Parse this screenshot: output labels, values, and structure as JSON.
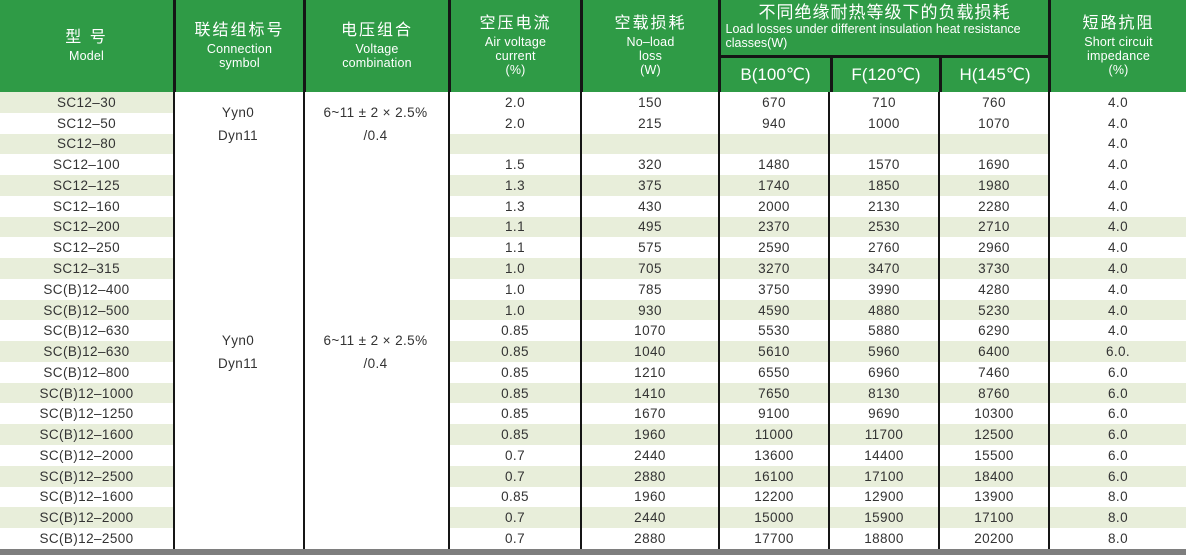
{
  "table": {
    "header": {
      "model": {
        "zh": "型  号",
        "en": "Model"
      },
      "connection": {
        "zh": "联结组标号",
        "en1": "Connection",
        "en2": "symbol"
      },
      "voltage": {
        "zh": "电压组合",
        "en1": "Voltage",
        "en2": "combination"
      },
      "air_current": {
        "zh": "空压电流",
        "en1": "Air voltage",
        "en2": "current",
        "unit": "(%)"
      },
      "no_load": {
        "zh": "空载损耗",
        "en1": "No–load",
        "en2": "loss",
        "unit": "(W)"
      },
      "load_losses": {
        "zh": "不同绝缘耐热等级下的负载损耗",
        "en": "Load losses under different insulation heat resistance classes(W)",
        "col_b": "B(100℃)",
        "col_f": "F(120℃)",
        "col_h": "H(145℃)"
      },
      "impedance": {
        "zh": "短路抗阻",
        "en1": "Short circuit",
        "en2": "impedance",
        "unit": "(%)"
      }
    },
    "groups": [
      {
        "connection1": "Yyn0",
        "connection2": "Dyn11",
        "voltage1": "6~11 ± 2 × 2.5%",
        "voltage2": "/0.4"
      },
      {
        "connection1": "Yyn0",
        "connection2": "Dyn11",
        "voltage1": "6~11 ± 2 × 2.5%",
        "voltage2": "/0.4"
      }
    ],
    "rows": [
      {
        "model": "SC12–30",
        "air": "2.0",
        "no_load": "150",
        "b": "670",
        "f": "710",
        "h": "760",
        "imp": "4.0"
      },
      {
        "model": "SC12–50",
        "air": "2.0",
        "no_load": "215",
        "b": "940",
        "f": "1000",
        "h": "1070",
        "imp": "4.0"
      },
      {
        "model": "SC12–80",
        "air": "",
        "no_load": "",
        "b": "",
        "f": "",
        "h": "",
        "imp": "4.0"
      },
      {
        "model": "SC12–100",
        "air": "1.5",
        "no_load": "320",
        "b": "1480",
        "f": "1570",
        "h": "1690",
        "imp": "4.0"
      },
      {
        "model": "SC12–125",
        "air": "1.3",
        "no_load": "375",
        "b": "1740",
        "f": "1850",
        "h": "1980",
        "imp": "4.0"
      },
      {
        "model": "SC12–160",
        "air": "1.3",
        "no_load": "430",
        "b": "2000",
        "f": "2130",
        "h": "2280",
        "imp": "4.0"
      },
      {
        "model": "SC12–200",
        "air": "1.1",
        "no_load": "495",
        "b": "2370",
        "f": "2530",
        "h": "2710",
        "imp": "4.0"
      },
      {
        "model": "SC12–250",
        "air": "1.1",
        "no_load": "575",
        "b": "2590",
        "f": "2760",
        "h": "2960",
        "imp": "4.0"
      },
      {
        "model": "SC12–315",
        "air": "1.0",
        "no_load": "705",
        "b": "3270",
        "f": "3470",
        "h": "3730",
        "imp": "4.0"
      },
      {
        "model": "SC(B)12–400",
        "air": "1.0",
        "no_load": "785",
        "b": "3750",
        "f": "3990",
        "h": "4280",
        "imp": "4.0"
      },
      {
        "model": "SC(B)12–500",
        "air": "1.0",
        "no_load": "930",
        "b": "4590",
        "f": "4880",
        "h": "5230",
        "imp": "4.0"
      },
      {
        "model": "SC(B)12–630",
        "air": "0.85",
        "no_load": "1070",
        "b": "5530",
        "f": "5880",
        "h": "6290",
        "imp": "4.0"
      },
      {
        "model": "SC(B)12–630",
        "air": "0.85",
        "no_load": "1040",
        "b": "5610",
        "f": "5960",
        "h": "6400",
        "imp": "6.0."
      },
      {
        "model": "SC(B)12–800",
        "air": "0.85",
        "no_load": "1210",
        "b": "6550",
        "f": "6960",
        "h": "7460",
        "imp": "6.0"
      },
      {
        "model": "SC(B)12–1000",
        "air": "0.85",
        "no_load": "1410",
        "b": "7650",
        "f": "8130",
        "h": "8760",
        "imp": "6.0"
      },
      {
        "model": "SC(B)12–1250",
        "air": "0.85",
        "no_load": "1670",
        "b": "9100",
        "f": "9690",
        "h": "10300",
        "imp": "6.0"
      },
      {
        "model": "SC(B)12–1600",
        "air": "0.85",
        "no_load": "1960",
        "b": "11000",
        "f": "11700",
        "h": "12500",
        "imp": "6.0"
      },
      {
        "model": "SC(B)12–2000",
        "air": "0.7",
        "no_load": "2440",
        "b": "13600",
        "f": "14400",
        "h": "15500",
        "imp": "6.0"
      },
      {
        "model": "SC(B)12–2500",
        "air": "0.7",
        "no_load": "2880",
        "b": "16100",
        "f": "17100",
        "h": "18400",
        "imp": "6.0"
      },
      {
        "model": "SC(B)12–1600",
        "air": "0.85",
        "no_load": "1960",
        "b": "12200",
        "f": "12900",
        "h": "13900",
        "imp": "8.0"
      },
      {
        "model": "SC(B)12–2000",
        "air": "0.7",
        "no_load": "2440",
        "b": "15000",
        "f": "15900",
        "h": "17100",
        "imp": "8.0"
      },
      {
        "model": "SC(B)12–2500",
        "air": "0.7",
        "no_load": "2880",
        "b": "17700",
        "f": "18800",
        "h": "20200",
        "imp": "8.0"
      }
    ]
  },
  "colors": {
    "header_green": "#2F9B46",
    "row_stripe": "#E8EEDA",
    "grid_line": "#151515",
    "body_text": "#333333",
    "bottom_bar": "#7E7E7E"
  }
}
